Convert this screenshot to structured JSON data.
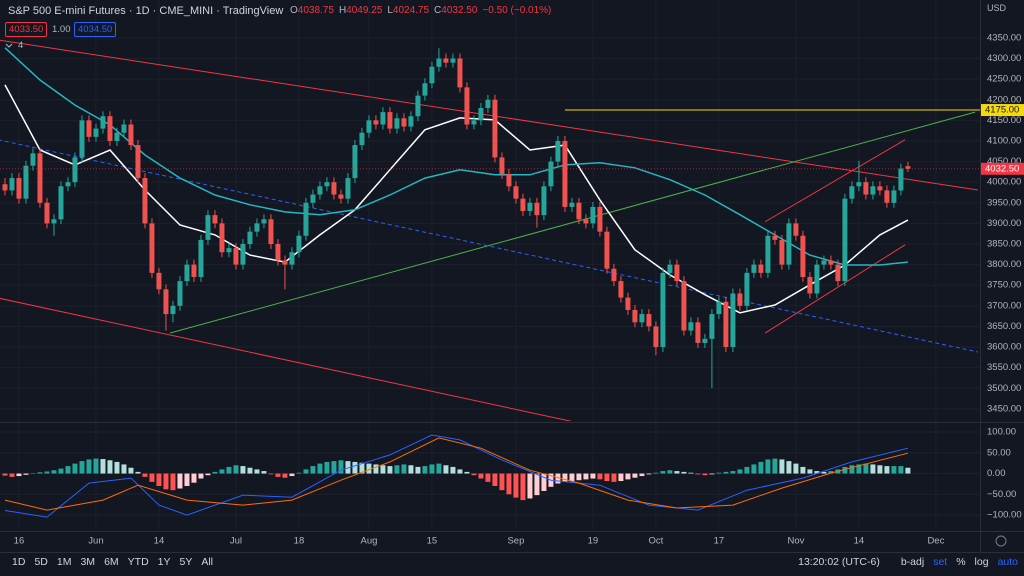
{
  "ui": {
    "title": "S&P 500 E-mini Futures · 1D · CME_MINI · TradingView",
    "legend": [
      {
        "key": "O",
        "value": "4038.75"
      },
      {
        "key": "H",
        "value": "4049.25"
      },
      {
        "key": "L",
        "value": "4024.75"
      },
      {
        "key": "C",
        "value": "4032.50"
      }
    ],
    "change": "−0.50 (−0.01%)",
    "sell": "4033.50",
    "spread": "1.00",
    "buy": "4034.50",
    "indicators": "4",
    "currency": "USD",
    "ranges": [
      "1D",
      "5D",
      "1M",
      "3M",
      "6M",
      "YTD",
      "1Y",
      "5Y",
      "All"
    ],
    "clock": "13:20:02 (UTC-6)",
    "options": [
      "b-adj",
      "set",
      "%",
      "log",
      "auto"
    ]
  },
  "chart_data": {
    "type": "candlestick",
    "xlim": [
      -0.71,
      139.3
    ],
    "ylim": [
      3423,
      4442
    ],
    "grid": true,
    "up_color": "#26a69a",
    "down_color": "#ef5350",
    "xticks": [
      {
        "value": 2,
        "label": "16"
      },
      {
        "value": 13,
        "label": "Jun"
      },
      {
        "value": 22,
        "label": "14"
      },
      {
        "value": 33,
        "label": "Jul"
      },
      {
        "value": 42,
        "label": "18"
      },
      {
        "value": 52,
        "label": "Aug"
      },
      {
        "value": 61,
        "label": "15"
      },
      {
        "value": 73,
        "label": "Sep"
      },
      {
        "value": 84,
        "label": "19"
      },
      {
        "value": 93,
        "label": "Oct"
      },
      {
        "value": 102,
        "label": "17"
      },
      {
        "value": 113,
        "label": "Nov"
      },
      {
        "value": 122,
        "label": "14"
      },
      {
        "value": 133,
        "label": "Dec"
      }
    ],
    "yticks": [
      {
        "value": 3450,
        "label": "3450.00"
      },
      {
        "value": 3500,
        "label": "3500.00"
      },
      {
        "value": 3550,
        "label": "3550.00"
      },
      {
        "value": 3600,
        "label": "3600.00"
      },
      {
        "value": 3650,
        "label": "3650.00"
      },
      {
        "value": 3700,
        "label": "3700.00"
      },
      {
        "value": 3750,
        "label": "3750.00"
      },
      {
        "value": 3800,
        "label": "3800.00"
      },
      {
        "value": 3850,
        "label": "3850.00"
      },
      {
        "value": 3900,
        "label": "3900.00"
      },
      {
        "value": 3950,
        "label": "3950.00"
      },
      {
        "value": 4000,
        "label": "4000.00"
      },
      {
        "value": 4050,
        "label": "4050.00"
      },
      {
        "value": 4100,
        "label": "4100.00"
      },
      {
        "value": 4150,
        "label": "4150.00"
      },
      {
        "value": 4200,
        "label": "4200.00"
      },
      {
        "value": 4250,
        "label": "4250.00"
      },
      {
        "value": 4300,
        "label": "4300.00"
      },
      {
        "value": 4350,
        "label": "4350.00"
      }
    ],
    "ohlc": [
      [
        3995,
        4010,
        3968,
        3980
      ],
      [
        3980,
        4022,
        3968,
        4010
      ],
      [
        4010,
        4022,
        3948,
        3960
      ],
      [
        3960,
        4052,
        3948,
        4040
      ],
      [
        4040,
        4082,
        4028,
        4070
      ],
      [
        4070,
        4082,
        3938,
        3950
      ],
      [
        3950,
        3962,
        3888,
        3900
      ],
      [
        3900,
        3922,
        3870,
        3910
      ],
      [
        3910,
        4002,
        3898,
        3990
      ],
      [
        3990,
        4012,
        3978,
        4000
      ],
      [
        4000,
        4072,
        3988,
        4060
      ],
      [
        4060,
        4162,
        4048,
        4150
      ],
      [
        4150,
        4162,
        4098,
        4110
      ],
      [
        4110,
        4142,
        4098,
        4130
      ],
      [
        4130,
        4172,
        4118,
        4160
      ],
      [
        4160,
        4172,
        4088,
        4100
      ],
      [
        4100,
        4132,
        4088,
        4120
      ],
      [
        4120,
        4152,
        4108,
        4140
      ],
      [
        4140,
        4152,
        4078,
        4090
      ],
      [
        4090,
        4102,
        3998,
        4010
      ],
      [
        4010,
        4022,
        3888,
        3900
      ],
      [
        3900,
        3912,
        3768,
        3780
      ],
      [
        3780,
        3792,
        3728,
        3740
      ],
      [
        3740,
        3752,
        3640,
        3680
      ],
      [
        3680,
        3712,
        3660,
        3700
      ],
      [
        3700,
        3772,
        3688,
        3760
      ],
      [
        3760,
        3812,
        3748,
        3800
      ],
      [
        3800,
        3812,
        3758,
        3770
      ],
      [
        3770,
        3872,
        3758,
        3860
      ],
      [
        3860,
        3932,
        3848,
        3920
      ],
      [
        3920,
        3932,
        3888,
        3900
      ],
      [
        3900,
        3912,
        3818,
        3830
      ],
      [
        3830,
        3852,
        3818,
        3840
      ],
      [
        3840,
        3852,
        3788,
        3800
      ],
      [
        3800,
        3862,
        3788,
        3850
      ],
      [
        3850,
        3892,
        3838,
        3880
      ],
      [
        3880,
        3912,
        3868,
        3900
      ],
      [
        3900,
        3922,
        3888,
        3910
      ],
      [
        3910,
        3922,
        3838,
        3850
      ],
      [
        3850,
        3862,
        3798,
        3810
      ],
      [
        3810,
        3822,
        3740,
        3800
      ],
      [
        3800,
        3842,
        3788,
        3830
      ],
      [
        3830,
        3882,
        3818,
        3870
      ],
      [
        3870,
        3962,
        3858,
        3950
      ],
      [
        3950,
        3982,
        3938,
        3970
      ],
      [
        3970,
        4002,
        3958,
        3990
      ],
      [
        3990,
        4012,
        3978,
        4000
      ],
      [
        4000,
        4012,
        3958,
        3970
      ],
      [
        3970,
        3982,
        3948,
        3960
      ],
      [
        3960,
        4022,
        3948,
        4010
      ],
      [
        4010,
        4102,
        3998,
        4090
      ],
      [
        4090,
        4132,
        4078,
        4120
      ],
      [
        4120,
        4162,
        4108,
        4150
      ],
      [
        4150,
        4162,
        4128,
        4140
      ],
      [
        4140,
        4182,
        4128,
        4170
      ],
      [
        4170,
        4182,
        4118,
        4130
      ],
      [
        4130,
        4167,
        4118,
        4155
      ],
      [
        4155,
        4167,
        4123,
        4135
      ],
      [
        4135,
        4172,
        4123,
        4160
      ],
      [
        4160,
        4222,
        4148,
        4210
      ],
      [
        4210,
        4252,
        4198,
        4240
      ],
      [
        4240,
        4292,
        4228,
        4280
      ],
      [
        4280,
        4325,
        4268,
        4300
      ],
      [
        4300,
        4312,
        4278,
        4290
      ],
      [
        4290,
        4312,
        4278,
        4300
      ],
      [
        4300,
        4312,
        4218,
        4230
      ],
      [
        4230,
        4242,
        4128,
        4140
      ],
      [
        4140,
        4162,
        4128,
        4150
      ],
      [
        4150,
        4192,
        4138,
        4180
      ],
      [
        4180,
        4212,
        4168,
        4200
      ],
      [
        4200,
        4212,
        4048,
        4060
      ],
      [
        4060,
        4072,
        4008,
        4020
      ],
      [
        4020,
        4032,
        3978,
        3990
      ],
      [
        3990,
        4002,
        3948,
        3960
      ],
      [
        3960,
        3972,
        3918,
        3930
      ],
      [
        3930,
        3962,
        3918,
        3950
      ],
      [
        3950,
        3962,
        3890,
        3920
      ],
      [
        3920,
        4002,
        3908,
        3990
      ],
      [
        3990,
        4062,
        3978,
        4050
      ],
      [
        4050,
        4112,
        4038,
        4100
      ],
      [
        4100,
        4112,
        3928,
        3940
      ],
      [
        3940,
        3962,
        3928,
        3950
      ],
      [
        3950,
        3962,
        3898,
        3910
      ],
      [
        3910,
        3922,
        3888,
        3900
      ],
      [
        3900,
        3952,
        3888,
        3940
      ],
      [
        3940,
        3952,
        3868,
        3880
      ],
      [
        3880,
        3892,
        3778,
        3790
      ],
      [
        3790,
        3802,
        3748,
        3760
      ],
      [
        3760,
        3772,
        3708,
        3720
      ],
      [
        3720,
        3732,
        3678,
        3690
      ],
      [
        3690,
        3702,
        3648,
        3660
      ],
      [
        3660,
        3692,
        3648,
        3680
      ],
      [
        3680,
        3692,
        3638,
        3650
      ],
      [
        3650,
        3662,
        3580,
        3600
      ],
      [
        3600,
        3792,
        3588,
        3780
      ],
      [
        3780,
        3812,
        3768,
        3800
      ],
      [
        3800,
        3812,
        3748,
        3760
      ],
      [
        3760,
        3772,
        3628,
        3640
      ],
      [
        3640,
        3672,
        3628,
        3660
      ],
      [
        3660,
        3672,
        3598,
        3610
      ],
      [
        3610,
        3632,
        3598,
        3620
      ],
      [
        3620,
        3692,
        3500,
        3680
      ],
      [
        3680,
        3722,
        3668,
        3710
      ],
      [
        3710,
        3722,
        3588,
        3600
      ],
      [
        3600,
        3742,
        3588,
        3730
      ],
      [
        3730,
        3742,
        3688,
        3700
      ],
      [
        3700,
        3792,
        3688,
        3780
      ],
      [
        3780,
        3812,
        3768,
        3800
      ],
      [
        3800,
        3812,
        3768,
        3780
      ],
      [
        3780,
        3882,
        3768,
        3870
      ],
      [
        3870,
        3882,
        3848,
        3860
      ],
      [
        3860,
        3872,
        3788,
        3800
      ],
      [
        3800,
        3912,
        3788,
        3900
      ],
      [
        3900,
        3912,
        3858,
        3870
      ],
      [
        3870,
        3882,
        3758,
        3770
      ],
      [
        3770,
        3782,
        3718,
        3730
      ],
      [
        3730,
        3812,
        3718,
        3800
      ],
      [
        3800,
        3822,
        3788,
        3810
      ],
      [
        3810,
        3822,
        3788,
        3800
      ],
      [
        3800,
        3812,
        3748,
        3760
      ],
      [
        3760,
        3972,
        3748,
        3960
      ],
      [
        3960,
        4002,
        3948,
        3990
      ],
      [
        3990,
        4052,
        3978,
        4000
      ],
      [
        4000,
        4012,
        3958,
        3970
      ],
      [
        3970,
        4002,
        3958,
        3990
      ],
      [
        3990,
        4002,
        3968,
        3980
      ],
      [
        3980,
        3992,
        3938,
        3950
      ],
      [
        3950,
        3992,
        3938,
        3980
      ],
      [
        3980,
        4045,
        3968,
        4033
      ],
      [
        4038.75,
        4049.25,
        4024.75,
        4032.5
      ]
    ],
    "last_price_label": "4032.50",
    "last_price_color": "#f23645",
    "moving_averages": [
      {
        "color": "#ffffff",
        "x": [
          0,
          5,
          10,
          15,
          20,
          25,
          30,
          35,
          40,
          45,
          50,
          55,
          60,
          65,
          70,
          75,
          80,
          85,
          90,
          95,
          100,
          105,
          110,
          115,
          120,
          125,
          129
        ],
        "values": [
          4236,
          4078,
          4042,
          4078,
          3981,
          3896,
          3872,
          3823,
          3806,
          3872,
          3933,
          4030,
          4127,
          4156,
          4151,
          4078,
          4090,
          3957,
          3836,
          3775,
          3727,
          3683,
          3702,
          3751,
          3799,
          3872,
          3908
        ]
      },
      {
        "color": "#26b5c2",
        "x": [
          0,
          5,
          10,
          15,
          20,
          25,
          30,
          35,
          40,
          45,
          50,
          55,
          60,
          65,
          70,
          75,
          80,
          85,
          90,
          95,
          100,
          105,
          110,
          115,
          120,
          125,
          129
        ],
        "values": [
          4326,
          4248,
          4187,
          4139,
          4066,
          4010,
          3969,
          3945,
          3928,
          3921,
          3933,
          3969,
          4010,
          4030,
          4018,
          4018,
          4042,
          4047,
          4035,
          4006,
          3969,
          3921,
          3872,
          3823,
          3799,
          3799,
          3806
        ]
      }
    ],
    "drawings": [
      {
        "color": "#f23645",
        "points": [
          [
            -1,
            4345
          ],
          [
            139,
            3981
          ]
        ]
      },
      {
        "color": "#4caf50",
        "points": [
          [
            23.6,
            3634
          ],
          [
            138.6,
            4170
          ]
        ]
      },
      {
        "color": "#f5d90a",
        "points": [
          [
            80,
            4175
          ],
          [
            139.3,
            4175
          ]
        ],
        "label": "4175.00"
      },
      {
        "color": "#2962ff",
        "dashed": true,
        "points": [
          [
            -1,
            4103
          ],
          [
            139,
            3588
          ]
        ]
      },
      {
        "color": "#f23645",
        "points": [
          [
            -1,
            3719
          ],
          [
            81.4,
            3418
          ]
        ]
      },
      {
        "color": "#f23645",
        "points": [
          [
            108.6,
            3904
          ],
          [
            128.6,
            4103
          ]
        ]
      },
      {
        "color": "#f23645",
        "points": [
          [
            108.6,
            3634
          ],
          [
            128.6,
            3848
          ]
        ]
      }
    ],
    "macd": {
      "ylim": [
        -136,
        117
      ],
      "yticks": [
        {
          "value": 100,
          "label": "100.00"
        },
        {
          "value": 50,
          "label": "50.00"
        },
        {
          "value": 0,
          "label": "0.00"
        },
        {
          "value": -50,
          "label": "−50.00"
        },
        {
          "value": -100,
          "label": "−100.00"
        }
      ],
      "hist_colors": {
        "rise_above": "#26a69a",
        "fall_above": "#b2dfdb",
        "fall_below": "#ff5252",
        "rise_below": "#ffcdd2"
      },
      "histogram": [
        -5,
        -8,
        -6,
        -3,
        1,
        3,
        5,
        8,
        12,
        18,
        24,
        30,
        34,
        36,
        35,
        32,
        28,
        22,
        14,
        4,
        -8,
        -20,
        -30,
        -38,
        -40,
        -36,
        -30,
        -22,
        -12,
        -4,
        4,
        10,
        16,
        20,
        18,
        14,
        10,
        6,
        -2,
        -8,
        -10,
        -6,
        2,
        10,
        18,
        24,
        28,
        30,
        32,
        30,
        28,
        26,
        24,
        22,
        20,
        18,
        20,
        22,
        20,
        16,
        18,
        22,
        24,
        20,
        16,
        10,
        4,
        -4,
        -12,
        -20,
        -30,
        -40,
        -50,
        -58,
        -64,
        -60,
        -52,
        -42,
        -32,
        -24,
        -20,
        -18,
        -16,
        -14,
        -12,
        -14,
        -18,
        -20,
        -18,
        -14,
        -10,
        -6,
        -2,
        2,
        6,
        8,
        6,
        4,
        2,
        -2,
        -4,
        -2,
        2,
        4,
        6,
        10,
        16,
        22,
        28,
        34,
        36,
        34,
        30,
        24,
        16,
        10,
        6,
        4,
        6,
        10,
        16,
        20,
        22,
        24,
        22,
        20,
        18,
        18,
        18,
        14
      ],
      "lines": [
        {
          "color": "#2962ff",
          "x": [
            0,
            6,
            12,
            18,
            22,
            26,
            34,
            41,
            48,
            55,
            61,
            65,
            71,
            78,
            85,
            92,
            99,
            106,
            114,
            121,
            129
          ],
          "values": [
            -89,
            -105,
            -23,
            -11,
            -76,
            -100,
            -52,
            -57,
            8,
            45,
            93,
            81,
            33,
            -16,
            -28,
            -76,
            -88,
            -40,
            -11,
            28,
            61
          ]
        },
        {
          "color": "#ff6d00",
          "x": [
            0,
            6,
            14,
            19,
            26,
            34,
            41,
            48,
            55,
            62,
            68,
            75,
            82,
            89,
            96,
            104,
            111,
            118,
            125,
            129
          ],
          "values": [
            -64,
            -88,
            -64,
            -28,
            -64,
            -76,
            -64,
            -16,
            28,
            86,
            61,
            8,
            -23,
            -64,
            -83,
            -76,
            -35,
            1,
            32,
            49
          ]
        }
      ]
    }
  }
}
